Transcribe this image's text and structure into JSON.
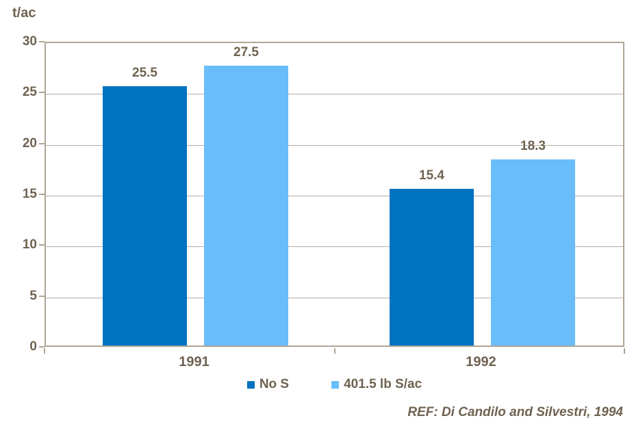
{
  "chart_data": {
    "type": "bar",
    "categories": [
      "1991",
      "1992"
    ],
    "series": [
      {
        "name": "No S",
        "color": "#0072C0",
        "values": [
          25.5,
          15.4
        ]
      },
      {
        "name": "401.5 lb S/ac",
        "color": "#69BDFB",
        "values": [
          27.5,
          18.3
        ]
      }
    ],
    "title": "",
    "xlabel": "",
    "ylabel": "t/ac",
    "ylim": [
      0,
      30
    ],
    "yticks": [
      0,
      5,
      10,
      15,
      20,
      25,
      30
    ],
    "grid": true,
    "legend_position": "bottom",
    "value_labels": true
  },
  "reference": "REF: Di Candilo and Silvestri, 1994",
  "colors": {
    "axis_border": "#b0a494",
    "gridline": "#b5aca0",
    "text": "#6f6250",
    "series_no_s": "#0072C0",
    "series_s_applied": "#69BDFB",
    "background": "#ffffff"
  }
}
